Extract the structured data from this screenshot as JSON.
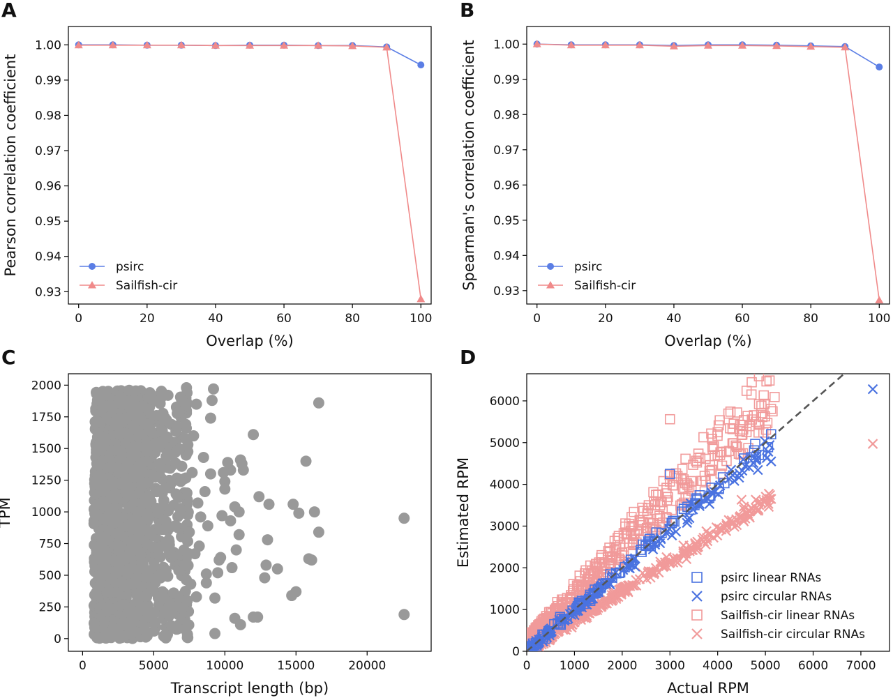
{
  "figure": {
    "panels": [
      {
        "letter": "A",
        "xlabel": "Overlap (%)",
        "ylabel": "Pearson correlation coefficient"
      },
      {
        "letter": "B",
        "xlabel": "Overlap (%)",
        "ylabel": "Spearman's correlation coefficient"
      },
      {
        "letter": "C",
        "xlabel": "Transcript length (bp)",
        "ylabel": "TPM"
      },
      {
        "letter": "D",
        "xlabel": "Actual RPM",
        "ylabel": "Estimated RPM"
      }
    ]
  },
  "colors": {
    "psirc": "#5b7ee5",
    "sailfish": "#f08a8a",
    "grey_points": "#999999",
    "psirc_linear": "#4a72e0",
    "sailfish_linear": "#f19a9a",
    "diagonal": "#555555"
  },
  "chart_data": [
    {
      "type": "line",
      "panel": "A",
      "xlabel": "Overlap (%)",
      "ylabel": "Pearson correlation coefficient",
      "xlim": [
        -3,
        103
      ],
      "ylim": [
        0.9265,
        1.0052
      ],
      "xticks": [
        0,
        20,
        40,
        60,
        80,
        100
      ],
      "yticks": [
        0.93,
        0.94,
        0.95,
        0.96,
        0.97,
        0.98,
        0.99,
        1.0
      ],
      "ytick_format": 2,
      "x": [
        0,
        10,
        20,
        30,
        40,
        50,
        60,
        70,
        80,
        90,
        100
      ],
      "series": [
        {
          "name": "psirc",
          "marker": "circle",
          "values": [
            1.0,
            1.0,
            0.9999,
            0.9999,
            0.9998,
            0.9999,
            0.9999,
            0.9998,
            0.9998,
            0.9994,
            0.9943
          ]
        },
        {
          "name": "Sailfish-cir",
          "marker": "triangle",
          "values": [
            0.9999,
            0.9999,
            0.9999,
            0.9999,
            0.9998,
            0.9998,
            0.9998,
            0.9998,
            0.9997,
            0.9993,
            0.9279
          ]
        }
      ],
      "legend": "lower-left"
    },
    {
      "type": "line",
      "panel": "B",
      "xlabel": "Overlap (%)",
      "ylabel": "Spearman's correlation coefficient",
      "xlim": [
        -3,
        103
      ],
      "ylim": [
        0.9262,
        1.005
      ],
      "xticks": [
        0,
        20,
        40,
        60,
        80,
        100
      ],
      "yticks": [
        0.93,
        0.94,
        0.95,
        0.96,
        0.97,
        0.98,
        0.99,
        1.0
      ],
      "ytick_format": 2,
      "x": [
        0,
        10,
        20,
        30,
        40,
        50,
        60,
        70,
        80,
        90,
        100
      ],
      "series": [
        {
          "name": "psirc",
          "marker": "circle",
          "values": [
            1.0,
            0.9998,
            0.9998,
            0.9998,
            0.9996,
            0.9998,
            0.9998,
            0.9997,
            0.9995,
            0.9993,
            0.9935
          ]
        },
        {
          "name": "Sailfish-cir",
          "marker": "triangle",
          "values": [
            1.0,
            0.9997,
            0.9997,
            0.9997,
            0.9994,
            0.9996,
            0.9996,
            0.9995,
            0.9993,
            0.9991,
            0.9273
          ]
        }
      ],
      "legend": "lower-left"
    },
    {
      "type": "scatter",
      "panel": "C",
      "xlabel": "Transcript length (bp)",
      "ylabel": "TPM",
      "xlim": [
        -1000,
        24500
      ],
      "ylim": [
        -100,
        2090
      ],
      "xticks": [
        0,
        5000,
        10000,
        15000,
        20000
      ],
      "yticks": [
        0,
        250,
        500,
        750,
        1000,
        1250,
        1500,
        1750,
        2000
      ],
      "ytick_format": 0,
      "points": [
        [
          16600,
          1860
        ],
        [
          22600,
          950
        ],
        [
          22600,
          190
        ],
        [
          15700,
          1400
        ],
        [
          15900,
          630
        ],
        [
          16100,
          620
        ],
        [
          16600,
          840
        ],
        [
          14800,
          1060
        ],
        [
          16300,
          1000
        ],
        [
          15200,
          990
        ],
        [
          14700,
          340
        ],
        [
          15000,
          370
        ],
        [
          13700,
          550
        ],
        [
          13100,
          1060
        ],
        [
          13000,
          780
        ],
        [
          12900,
          580
        ],
        [
          12800,
          480
        ],
        [
          12400,
          1120
        ],
        [
          12000,
          1610
        ],
        [
          12000,
          170
        ],
        [
          11300,
          1330
        ],
        [
          11200,
          1380
        ],
        [
          11100,
          1410
        ],
        [
          11000,
          1000
        ],
        [
          11000,
          820
        ],
        [
          10800,
          700
        ],
        [
          10700,
          1040
        ],
        [
          10500,
          560
        ],
        [
          10400,
          930
        ],
        [
          10400,
          1330
        ],
        [
          10200,
          1390
        ],
        [
          10000,
          1240
        ],
        [
          10000,
          1180
        ],
        [
          9900,
          1310
        ],
        [
          9800,
          970
        ],
        [
          9700,
          640
        ],
        [
          9600,
          620
        ],
        [
          9500,
          520
        ],
        [
          9300,
          320
        ],
        [
          9300,
          40
        ],
        [
          9200,
          1970
        ],
        [
          9100,
          1880
        ],
        [
          9000,
          1740
        ],
        [
          9000,
          1300
        ],
        [
          8800,
          890
        ],
        [
          8700,
          510
        ],
        [
          8700,
          440
        ],
        [
          8600,
          1160
        ],
        [
          8500,
          1430
        ],
        [
          8300,
          960
        ],
        [
          8200,
          730
        ],
        [
          8100,
          1070
        ],
        [
          8000,
          330
        ],
        [
          8000,
          1850
        ],
        [
          7900,
          670
        ],
        [
          7800,
          1600
        ],
        [
          7700,
          1310
        ],
        [
          7600,
          430
        ],
        [
          7500,
          840
        ],
        [
          7400,
          1530
        ],
        [
          7300,
          1980
        ],
        [
          7200,
          580
        ],
        [
          7000,
          240
        ],
        [
          6900,
          1240
        ],
        [
          6800,
          1790
        ],
        [
          6700,
          1120
        ],
        [
          6500,
          890
        ],
        [
          6400,
          360
        ],
        [
          6300,
          1450
        ],
        [
          6100,
          740
        ],
        [
          6000,
          1920
        ],
        [
          5800,
          1190
        ],
        [
          5700,
          20
        ],
        [
          5600,
          1640
        ],
        [
          5400,
          500
        ],
        [
          5300,
          990
        ],
        [
          5200,
          1760
        ],
        [
          5100,
          130
        ],
        [
          10700,
          160
        ],
        [
          11100,
          110
        ],
        [
          12300,
          170
        ]
      ],
      "dense_region": {
        "x_range": [
          800,
          4500
        ],
        "y_range": [
          0,
          1960
        ],
        "count": 1100,
        "tail_x_range": [
          4500,
          7500
        ],
        "tail_count": 280
      }
    },
    {
      "type": "scatter",
      "panel": "D",
      "xlabel": "Actual RPM",
      "ylabel": "Estimated RPM",
      "xlim": [
        0,
        7600
      ],
      "ylim": [
        0,
        6650
      ],
      "xticks": [
        0,
        1000,
        2000,
        3000,
        4000,
        5000,
        6000,
        7000
      ],
      "yticks": [
        0,
        1000,
        2000,
        3000,
        4000,
        5000,
        6000
      ],
      "ytick_format": 0,
      "diagonal": "y = x",
      "series": [
        {
          "name": "psirc linear RNAs",
          "marker": "square",
          "color": "#4a72e0",
          "slope": 1.0,
          "x_max": 5100
        },
        {
          "name": "psirc circular RNAs",
          "marker": "x",
          "color": "#4a72e0",
          "slope": 0.96,
          "x_max": 5100
        },
        {
          "name": "Sailfish-cir linear RNAs",
          "marker": "square",
          "color": "#f19a9a",
          "slope": 1.15,
          "x_max": 5200
        },
        {
          "name": "Sailfish-cir circular RNAs",
          "marker": "x",
          "color": "#f19a9a",
          "slope": 0.72,
          "x_max": 5100
        }
      ],
      "outliers": [
        {
          "series": "psirc circular RNAs",
          "x": 7250,
          "y": 6280
        },
        {
          "series": "Sailfish-cir circular RNAs",
          "x": 7250,
          "y": 4970
        },
        {
          "series": "psirc circular RNAs",
          "x": 5120,
          "y": 4550
        },
        {
          "series": "Sailfish-cir circular RNAs",
          "x": 5120,
          "y": 3650
        },
        {
          "series": "psirc linear RNAs",
          "x": 5120,
          "y": 5200
        },
        {
          "series": "Sailfish-cir linear RNAs",
          "x": 5150,
          "y": 5750
        },
        {
          "series": "Sailfish-cir linear RNAs",
          "x": 3000,
          "y": 5560
        },
        {
          "series": "Sailfish-cir linear RNAs",
          "x": 4500,
          "y": 5420
        },
        {
          "series": "Sailfish-cir linear RNAs",
          "x": 4550,
          "y": 5540
        },
        {
          "series": "Sailfish-cir linear RNAs",
          "x": 4800,
          "y": 5500
        },
        {
          "series": "Sailfish-cir linear RNAs",
          "x": 4000,
          "y": 5250
        },
        {
          "series": "Sailfish-cir linear RNAs",
          "x": 4000,
          "y": 4700
        },
        {
          "series": "psirc linear RNAs",
          "x": 4800,
          "y": 4650
        },
        {
          "series": "psirc linear RNAs",
          "x": 4550,
          "y": 4620
        },
        {
          "series": "psirc linear RNAs",
          "x": 3000,
          "y": 4250
        },
        {
          "series": "Sailfish-cir circular RNAs",
          "x": 4500,
          "y": 3630
        },
        {
          "series": "Sailfish-cir circular RNAs",
          "x": 4550,
          "y": 3400
        }
      ],
      "legend": "lower-right"
    }
  ]
}
